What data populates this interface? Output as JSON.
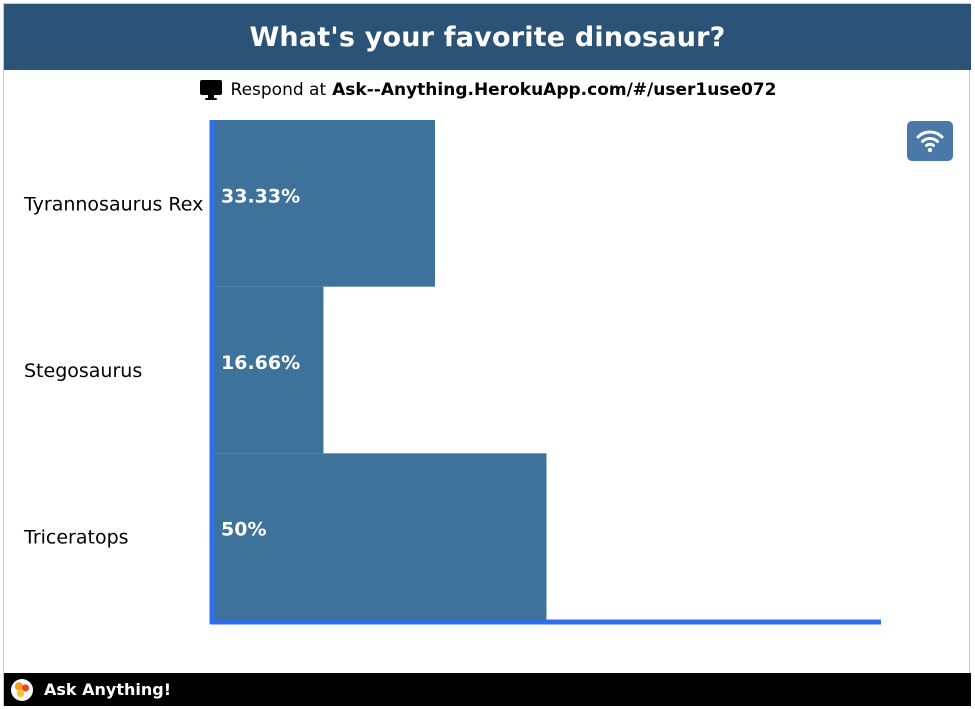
{
  "header": {
    "title": "What's your favorite dinosaur?"
  },
  "respond": {
    "prefix": "Respond at",
    "url": "Ask--Anything.HerokuApp.com/#/user1use072"
  },
  "footer": {
    "brand": "Ask Anything!"
  },
  "colors": {
    "header_bg": "#2b5377",
    "bar": "#3d739b",
    "axis": "#2f6fed",
    "wifi_button": "#4a78a8"
  },
  "chart_data": {
    "type": "bar",
    "orientation": "horizontal",
    "categories": [
      "Tyrannosaurus Rex",
      "Stegosaurus",
      "Triceratops"
    ],
    "values": [
      33.33,
      16.66,
      50
    ],
    "data_labels": [
      "33.33%",
      "16.66%",
      "50%"
    ],
    "xlim": [
      0,
      100
    ],
    "grid": false,
    "legend": "none"
  }
}
